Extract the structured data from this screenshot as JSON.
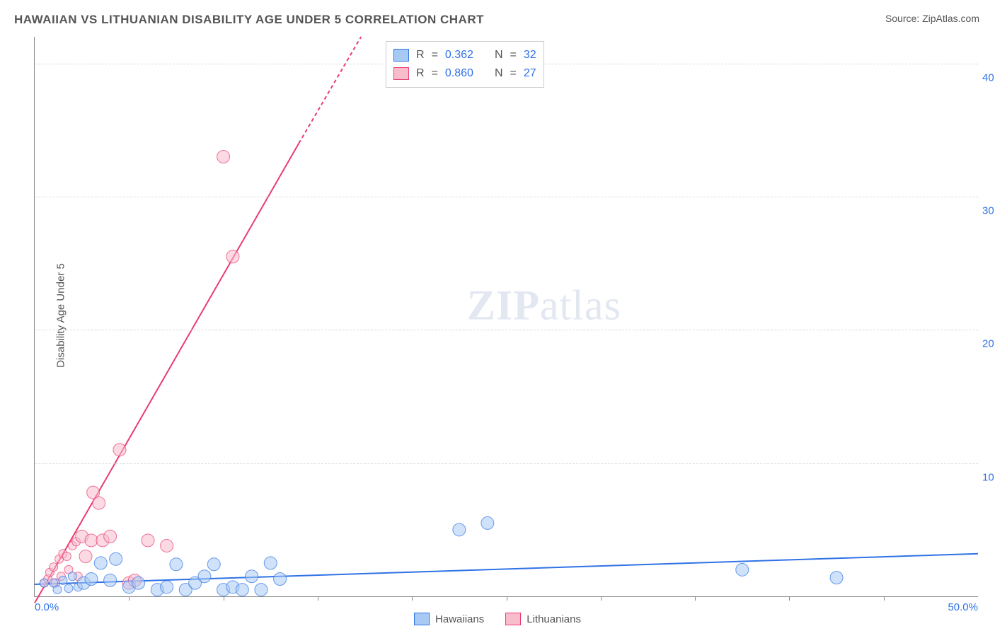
{
  "title": "HAWAIIAN VS LITHUANIAN DISABILITY AGE UNDER 5 CORRELATION CHART",
  "source": "Source: ZipAtlas.com",
  "ylabel": "Disability Age Under 5",
  "watermark_bold": "ZIP",
  "watermark_rest": "atlas",
  "chart": {
    "type": "scatter",
    "xlim": [
      0,
      50
    ],
    "ylim": [
      0,
      42
    ],
    "xticks_labeled": [
      0,
      50
    ],
    "xtick_labels": [
      "0.0%",
      "50.0%"
    ],
    "xticks_unlabeled": [
      5,
      10,
      15,
      20,
      25,
      30,
      35,
      40,
      45
    ],
    "yticks": [
      10,
      20,
      30,
      40
    ],
    "ytick_labels": [
      "10.0%",
      "20.0%",
      "30.0%",
      "40.0%"
    ],
    "grid_color": "#dddddd",
    "axis_color": "#888888",
    "background_color": "#ffffff",
    "marker_radius_main": 9,
    "marker_radius_small": 6,
    "marker_opacity": 0.55,
    "trend_line_width": 2
  },
  "series": {
    "hawaiians": {
      "label": "Hawaiians",
      "fill": "#a7caf4",
      "stroke": "#2f72e6",
      "r_value": "0.362",
      "n_value": "32",
      "trend": {
        "x1": 0,
        "y1": 0.9,
        "x2": 50,
        "y2": 3.2
      },
      "points": [
        [
          0.5,
          1.0
        ],
        [
          1.0,
          1.0
        ],
        [
          1.2,
          0.5
        ],
        [
          1.5,
          1.2
        ],
        [
          1.8,
          0.6
        ],
        [
          2.0,
          1.5
        ],
        [
          2.3,
          0.7
        ],
        [
          2.6,
          1.0
        ],
        [
          3.0,
          1.3
        ],
        [
          3.5,
          2.5
        ],
        [
          4.0,
          1.2
        ],
        [
          4.3,
          2.8
        ],
        [
          5.0,
          0.7
        ],
        [
          5.5,
          1.0
        ],
        [
          6.5,
          0.5
        ],
        [
          7.0,
          0.7
        ],
        [
          7.5,
          2.4
        ],
        [
          8.0,
          0.5
        ],
        [
          8.5,
          1.0
        ],
        [
          9.0,
          1.5
        ],
        [
          9.5,
          2.4
        ],
        [
          10.0,
          0.5
        ],
        [
          10.5,
          0.7
        ],
        [
          11.0,
          0.5
        ],
        [
          11.5,
          1.5
        ],
        [
          12.0,
          0.5
        ],
        [
          12.5,
          2.5
        ],
        [
          13.0,
          1.3
        ],
        [
          22.5,
          5.0
        ],
        [
          24.0,
          5.5
        ],
        [
          37.5,
          2.0
        ],
        [
          42.5,
          1.4
        ]
      ]
    },
    "lithuanians": {
      "label": "Lithuanians",
      "fill": "#f8bccd",
      "stroke": "#ea3b70",
      "r_value": "0.860",
      "n_value": "27",
      "trend": {
        "x1": 0,
        "y1": -0.5,
        "x2": 14,
        "y2": 34
      },
      "trend_dashed_ext": {
        "x1": 14,
        "y1": 34,
        "x2": 17.3,
        "y2": 42
      },
      "points": [
        [
          0.5,
          1.0
        ],
        [
          0.7,
          1.3
        ],
        [
          0.8,
          1.8
        ],
        [
          1.0,
          2.2
        ],
        [
          1.1,
          1.0
        ],
        [
          1.3,
          2.8
        ],
        [
          1.4,
          1.5
        ],
        [
          1.5,
          3.2
        ],
        [
          1.7,
          3.0
        ],
        [
          1.8,
          2.0
        ],
        [
          2.0,
          3.8
        ],
        [
          2.2,
          4.1
        ],
        [
          2.3,
          1.5
        ],
        [
          2.5,
          4.5
        ],
        [
          2.7,
          3.0
        ],
        [
          3.0,
          4.2
        ],
        [
          3.1,
          7.8
        ],
        [
          3.4,
          7.0
        ],
        [
          3.6,
          4.2
        ],
        [
          4.0,
          4.5
        ],
        [
          4.5,
          11.0
        ],
        [
          5.0,
          1.0
        ],
        [
          6.0,
          4.2
        ],
        [
          7.0,
          3.8
        ],
        [
          10.0,
          33.0
        ],
        [
          10.5,
          25.5
        ],
        [
          5.3,
          1.2
        ]
      ]
    }
  },
  "corr_legend": {
    "r_label": "R",
    "eq": "=",
    "n_label": "N"
  }
}
